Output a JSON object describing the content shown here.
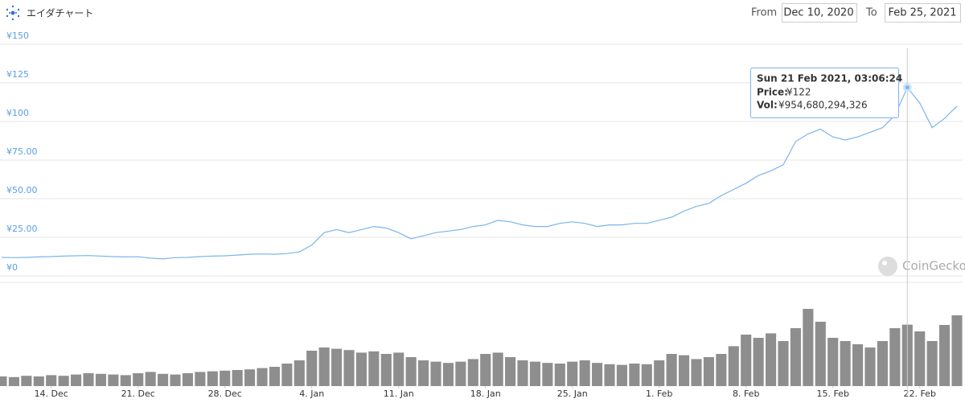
{
  "header": {
    "title": "エイダチャート",
    "from_label": "From",
    "from_date": "Dec 10, 2020",
    "to_label": "To",
    "to_date": "Feb 25, 2021"
  },
  "chart_data": {
    "type": "line",
    "x": [
      "2020-12-10",
      "2020-12-11",
      "2020-12-12",
      "2020-12-13",
      "2020-12-14",
      "2020-12-15",
      "2020-12-16",
      "2020-12-17",
      "2020-12-18",
      "2020-12-19",
      "2020-12-20",
      "2020-12-21",
      "2020-12-22",
      "2020-12-23",
      "2020-12-24",
      "2020-12-25",
      "2020-12-26",
      "2020-12-27",
      "2020-12-28",
      "2020-12-29",
      "2020-12-30",
      "2020-12-31",
      "2021-01-01",
      "2021-01-02",
      "2021-01-03",
      "2021-01-04",
      "2021-01-05",
      "2021-01-06",
      "2021-01-07",
      "2021-01-08",
      "2021-01-09",
      "2021-01-10",
      "2021-01-11",
      "2021-01-12",
      "2021-01-13",
      "2021-01-14",
      "2021-01-15",
      "2021-01-16",
      "2021-01-17",
      "2021-01-18",
      "2021-01-19",
      "2021-01-20",
      "2021-01-21",
      "2021-01-22",
      "2021-01-23",
      "2021-01-24",
      "2021-01-25",
      "2021-01-26",
      "2021-01-27",
      "2021-01-28",
      "2021-01-29",
      "2021-01-30",
      "2021-01-31",
      "2021-02-01",
      "2021-02-02",
      "2021-02-03",
      "2021-02-04",
      "2021-02-05",
      "2021-02-06",
      "2021-02-07",
      "2021-02-08",
      "2021-02-09",
      "2021-02-10",
      "2021-02-11",
      "2021-02-12",
      "2021-02-13",
      "2021-02-14",
      "2021-02-15",
      "2021-02-16",
      "2021-02-17",
      "2021-02-18",
      "2021-02-19",
      "2021-02-20",
      "2021-02-21",
      "2021-02-22",
      "2021-02-23",
      "2021-02-24",
      "2021-02-25"
    ],
    "series": [
      {
        "color": "#7cb5ec",
        "values": [
          12,
          11.8,
          12,
          12.3,
          12.5,
          12.8,
          13,
          13.2,
          12.8,
          12.5,
          12.3,
          12.4,
          11.5,
          11,
          11.8,
          12,
          12.5,
          12.8,
          13,
          13.5,
          14,
          14.2,
          14,
          14.5,
          15.5,
          20,
          28,
          30,
          28,
          30,
          32,
          31,
          28,
          24,
          26,
          28,
          29,
          30,
          32,
          33,
          36,
          35,
          33,
          32,
          32,
          34,
          35,
          34,
          32,
          33,
          33,
          34,
          34,
          36,
          38,
          42,
          45,
          47,
          52,
          56,
          60,
          65,
          68,
          72,
          87,
          92,
          95,
          90,
          88,
          90,
          93,
          96,
          104,
          122,
          112,
          96,
          102,
          110
        ]
      },
      {
        "type": "bar",
        "axis": "y2",
        "color": "#7a7a7a",
        "values": [
          150000000000,
          140000000000,
          160000000000,
          150000000000,
          170000000000,
          160000000000,
          180000000000,
          200000000000,
          190000000000,
          180000000000,
          170000000000,
          200000000000,
          220000000000,
          190000000000,
          180000000000,
          200000000000,
          220000000000,
          230000000000,
          240000000000,
          250000000000,
          260000000000,
          280000000000,
          300000000000,
          350000000000,
          400000000000,
          550000000000,
          600000000000,
          580000000000,
          560000000000,
          520000000000,
          540000000000,
          500000000000,
          520000000000,
          450000000000,
          400000000000,
          380000000000,
          360000000000,
          380000000000,
          420000000000,
          500000000000,
          520000000000,
          450000000000,
          400000000000,
          380000000000,
          360000000000,
          350000000000,
          380000000000,
          400000000000,
          360000000000,
          340000000000,
          330000000000,
          350000000000,
          340000000000,
          400000000000,
          500000000000,
          480000000000,
          420000000000,
          450000000000,
          500000000000,
          620000000000,
          800000000000,
          750000000000,
          820000000000,
          700000000000,
          900000000000,
          1200000000000,
          1000000000000,
          750000000000,
          700000000000,
          650000000000,
          600000000000,
          700000000000,
          900000000000,
          954680294326,
          850000000000,
          700000000000,
          950000000000,
          1100000000000
        ]
      }
    ],
    "xlim": [
      "2020-12-10",
      "2021-02-25"
    ],
    "xticks": [
      {
        "value": "2020-12-14",
        "label": "14. Dec"
      },
      {
        "value": "2020-12-21",
        "label": "21. Dec"
      },
      {
        "value": "2020-12-28",
        "label": "28. Dec"
      },
      {
        "value": "2021-01-04",
        "label": "4. Jan"
      },
      {
        "value": "2021-01-11",
        "label": "11. Jan"
      },
      {
        "value": "2021-01-18",
        "label": "18. Jan"
      },
      {
        "value": "2021-01-25",
        "label": "25. Jan"
      },
      {
        "value": "2021-02-01",
        "label": "1. Feb"
      },
      {
        "value": "2021-02-08",
        "label": "8. Feb"
      },
      {
        "value": "2021-02-15",
        "label": "15. Feb"
      },
      {
        "value": "2021-02-22",
        "label": "22. Feb"
      }
    ],
    "ylim": [
      0,
      150
    ],
    "yticks": [
      {
        "value": 0,
        "label": "¥0"
      },
      {
        "value": 25,
        "label": "¥25.00"
      },
      {
        "value": 50,
        "label": "¥50.00"
      },
      {
        "value": 75,
        "label": "¥75.00"
      },
      {
        "value": 100,
        "label": "¥100"
      },
      {
        "value": 125,
        "label": "¥125"
      },
      {
        "value": 150,
        "label": "¥150"
      }
    ],
    "y2lim": [
      0,
      1500000000000
    ],
    "grid": true,
    "watermark": "CoinGecko",
    "tooltip": {
      "date": "Sun 21 Feb 2021, 03:06:24",
      "price_label": "Price:",
      "price": "¥122",
      "vol_label": "Vol:",
      "vol": "¥954,680,294,326"
    }
  }
}
